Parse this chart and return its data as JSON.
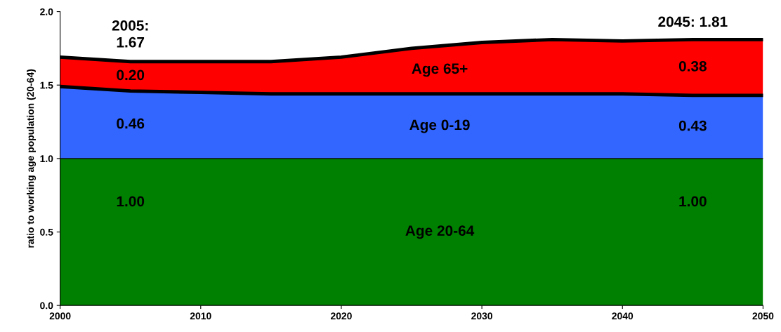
{
  "chart_data": {
    "type": "area",
    "stacked": true,
    "ylabel": "ratio to working age population (20-64)",
    "x": [
      2000,
      2005,
      2010,
      2015,
      2020,
      2025,
      2030,
      2035,
      2040,
      2045,
      2050
    ],
    "series": [
      {
        "name": "Age 20-64",
        "color": "#008000",
        "values": [
          1.0,
          1.0,
          1.0,
          1.0,
          1.0,
          1.0,
          1.0,
          1.0,
          1.0,
          1.0,
          1.0
        ],
        "value_labels": [
          null,
          "1.00",
          null,
          null,
          null,
          null,
          null,
          null,
          null,
          "1.00",
          null
        ]
      },
      {
        "name": "Age 0-19",
        "color": "#3366ff",
        "values": [
          0.49,
          0.46,
          0.45,
          0.44,
          0.44,
          0.44,
          0.44,
          0.44,
          0.44,
          0.43,
          0.43
        ],
        "value_labels": [
          null,
          "0.46",
          null,
          null,
          null,
          null,
          null,
          null,
          null,
          "0.43",
          null
        ]
      },
      {
        "name": "Age 65+",
        "color": "#ff0000",
        "values": [
          0.2,
          0.2,
          0.21,
          0.22,
          0.25,
          0.31,
          0.35,
          0.37,
          0.36,
          0.38,
          0.38
        ],
        "value_labels": [
          null,
          "0.20",
          null,
          null,
          null,
          null,
          null,
          null,
          null,
          "0.38",
          null
        ]
      }
    ],
    "annotations": [
      {
        "text": "2005:\n1.67",
        "x": 2005,
        "y": 1.67
      },
      {
        "text": "2045: 1.81",
        "x": 2045,
        "y": 1.81
      }
    ],
    "xlim": [
      2000,
      2050
    ],
    "xticks": [
      2000,
      2010,
      2020,
      2030,
      2040,
      2050
    ],
    "ylim": [
      0,
      2.0
    ],
    "yticks": [
      {
        "value": 0,
        "label": "0.0"
      },
      {
        "value": 0.5,
        "label": "0.5"
      },
      {
        "value": 1.0,
        "label": "1.0"
      },
      {
        "value": 1.5,
        "label": "1.5"
      },
      {
        "value": 2.0,
        "label": "2.0"
      }
    ],
    "grid": false,
    "legend": false
  }
}
